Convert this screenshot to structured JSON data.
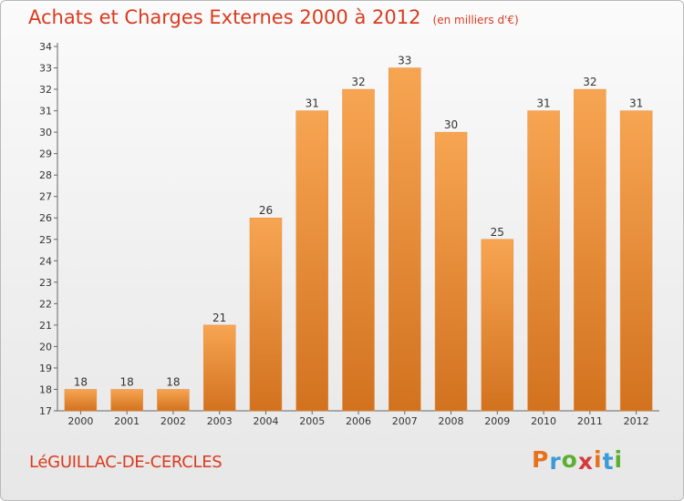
{
  "header": {
    "title": "Achats et Charges Externes 2000 à 2012",
    "subtitle": "(en milliers d'€)"
  },
  "footer": {
    "commune": "LéGUILLAC-DE-CERCLES",
    "logo_letters": [
      "P",
      "r",
      "o",
      "x",
      "i",
      "t",
      "i"
    ],
    "logo_colors": [
      "#e8721c",
      "#3b9bd6",
      "#5cb031",
      "#d63a3a",
      "#e8721c",
      "#3b9bd6",
      "#5cb031"
    ]
  },
  "chart_data": {
    "type": "bar",
    "categories": [
      "2000",
      "2001",
      "2002",
      "2003",
      "2004",
      "2005",
      "2006",
      "2007",
      "2008",
      "2009",
      "2010",
      "2011",
      "2012"
    ],
    "values": [
      18,
      18,
      18,
      21,
      26,
      31,
      32,
      33,
      30,
      25,
      31,
      32,
      31
    ],
    "ylim": [
      17,
      34
    ],
    "yticks": [
      17,
      18,
      19,
      20,
      21,
      22,
      23,
      24,
      25,
      26,
      27,
      28,
      29,
      30,
      31,
      32,
      33,
      34
    ],
    "grid": false,
    "bar_color_top": "#f7a552",
    "bar_color_bottom": "#d2721f"
  }
}
